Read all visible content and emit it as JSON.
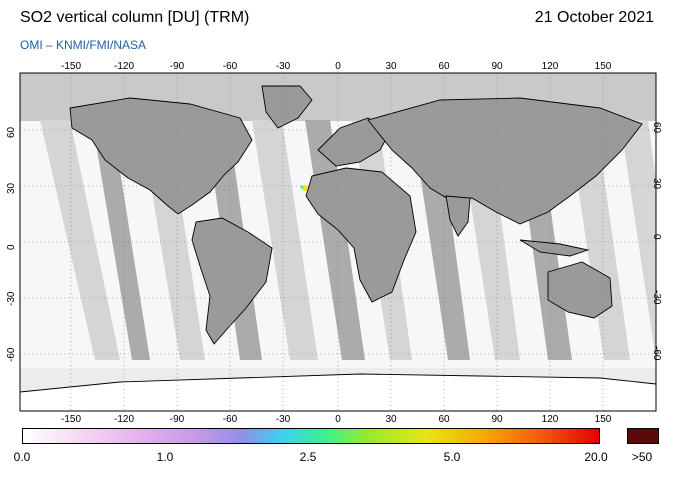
{
  "header": {
    "title": "SO2 vertical column [DU] (TRM)",
    "date": "21 October 2021",
    "credit": "OMI  –  KNMI/FMI/NASA"
  },
  "axes": {
    "lon_ticks": [
      "-150",
      "-120",
      "-90",
      "-60",
      "-30",
      "0",
      "30",
      "60",
      "90",
      "120",
      "150"
    ],
    "lat_ticks": [
      "60",
      "30",
      "0",
      "-30",
      "-60"
    ]
  },
  "colorbar": {
    "labels": [
      "0.0",
      "1.0",
      "2.5",
      "5.0",
      "20.0"
    ],
    "max_label": ">50"
  },
  "colors": {
    "ocean": "#f7f6f9",
    "land_outline": "#000000",
    "swath_light": "#d4d4d4",
    "swath_dark": "#a8a8a8",
    "gap_grey": "#b8b8b8"
  }
}
